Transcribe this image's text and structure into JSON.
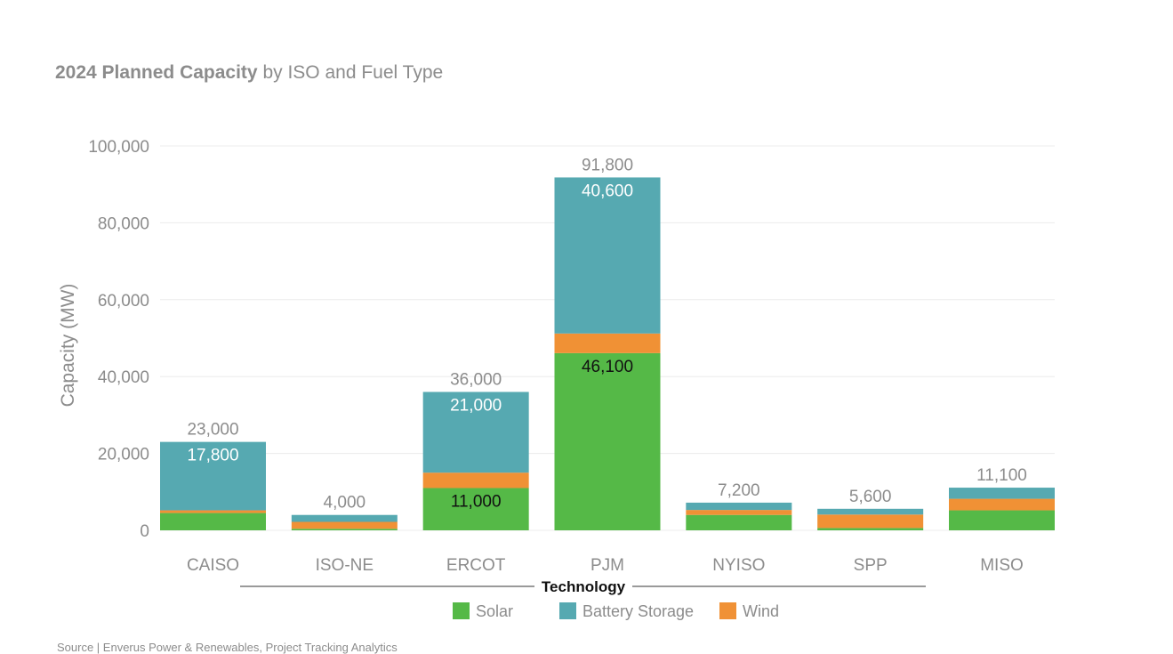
{
  "colors": {
    "Solar": "#55b947",
    "Battery Storage": "#56a9b1",
    "Wind": "#f09135",
    "grid": "#ececec",
    "muted_text": "#8c8c8c"
  },
  "chart_data": {
    "type": "bar",
    "stacked": true,
    "title_bold": "2024 Planned Capacity",
    "title_rest": " by ISO and Fuel Type",
    "ylabel": "Capacity (MW)",
    "xlabel": "",
    "ylim": [
      0,
      100000
    ],
    "yticks": [
      0,
      20000,
      40000,
      60000,
      80000,
      100000
    ],
    "ytick_labels": [
      "0",
      "20,000",
      "40,000",
      "60,000",
      "80,000",
      "100,000"
    ],
    "grid": true,
    "categories": [
      "CAISO",
      "ISO-NE",
      "ERCOT",
      "PJM",
      "NYISO",
      "SPP",
      "MISO"
    ],
    "series": [
      {
        "name": "Solar",
        "values": [
          4500,
          400,
          11000,
          46100,
          4000,
          600,
          5200
        ]
      },
      {
        "name": "Wind",
        "values": [
          700,
          1800,
          4000,
          5100,
          1300,
          3500,
          3000
        ]
      },
      {
        "name": "Battery Storage",
        "values": [
          17800,
          1800,
          21000,
          40600,
          1900,
          1500,
          2900
        ]
      }
    ],
    "totals": [
      23000,
      4000,
      36000,
      91800,
      7200,
      5600,
      11100
    ],
    "total_labels": [
      "23,000",
      "4,000",
      "36,000",
      "91,800",
      "7,200",
      "5,600",
      "11,100"
    ],
    "segment_labels": [
      {
        "category": "CAISO",
        "series": "Battery Storage",
        "text": "17,800"
      },
      {
        "category": "ERCOT",
        "series": "Battery Storage",
        "text": "21,000"
      },
      {
        "category": "ERCOT",
        "series": "Solar",
        "text": "11,000"
      },
      {
        "category": "PJM",
        "series": "Battery Storage",
        "text": "40,600"
      },
      {
        "category": "PJM",
        "series": "Solar",
        "text": "46,100"
      }
    ],
    "legend": {
      "title": "Technology",
      "placement": "bottom",
      "entries": [
        "Solar",
        "Battery Storage",
        "Wind"
      ]
    }
  },
  "source": "Source | Enverus Power & Renewables, Project Tracking Analytics"
}
